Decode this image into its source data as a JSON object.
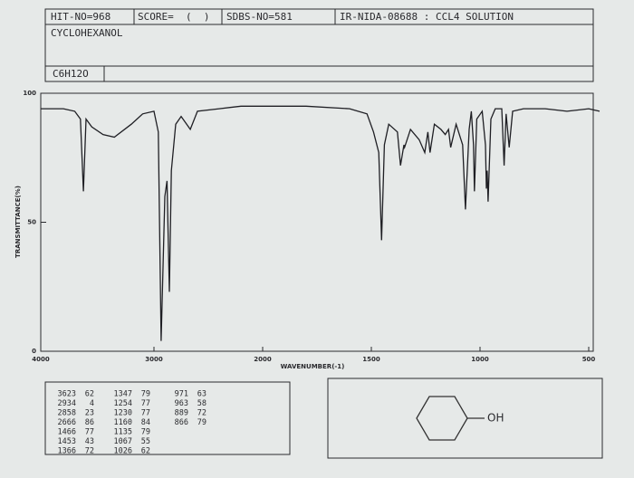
{
  "header": {
    "hit": "HIT-NO=968",
    "score": "SCORE=  (  )",
    "sdbs": "SDBS-NO=581",
    "ir": "IR-NIDA-08688 : CCL4 SOLUTION",
    "name": "CYCLOHEXANOL",
    "formula": "C6H12O"
  },
  "chart_data": {
    "type": "line",
    "xlabel": "WAVENUMBER(-1)",
    "ylabel": "TRANSMITTANCE(%)",
    "xlim": [
      4000,
      450
    ],
    "xticks": [
      4000,
      3000,
      2000,
      1500,
      1000,
      500
    ],
    "ylim": [
      0,
      100
    ],
    "yticks": [
      0,
      50,
      100
    ],
    "color": "#1f1f24",
    "x": [
      4000,
      3800,
      3700,
      3650,
      3623,
      3600,
      3550,
      3450,
      3350,
      3200,
      3100,
      3000,
      2960,
      2934,
      2900,
      2880,
      2858,
      2840,
      2800,
      2750,
      2666,
      2600,
      2400,
      2200,
      2000,
      1800,
      1600,
      1520,
      1490,
      1466,
      1453,
      1440,
      1420,
      1380,
      1366,
      1350,
      1347,
      1320,
      1280,
      1254,
      1240,
      1230,
      1210,
      1180,
      1160,
      1145,
      1135,
      1110,
      1080,
      1067,
      1050,
      1040,
      1030,
      1026,
      1015,
      990,
      975,
      971,
      967,
      963,
      950,
      930,
      900,
      889,
      880,
      866,
      850,
      800,
      700,
      600,
      500,
      450
    ],
    "values": [
      94,
      94,
      93,
      90,
      62,
      90,
      87,
      84,
      83,
      88,
      92,
      93,
      85,
      4,
      60,
      66,
      23,
      70,
      88,
      91,
      86,
      93,
      94,
      95,
      95,
      95,
      94,
      92,
      85,
      77,
      43,
      80,
      88,
      85,
      72,
      80,
      79,
      86,
      82,
      77,
      85,
      77,
      88,
      86,
      84,
      86,
      79,
      88,
      80,
      55,
      86,
      93,
      80,
      62,
      90,
      93,
      80,
      63,
      70,
      58,
      90,
      94,
      94,
      72,
      92,
      79,
      93,
      94,
      94,
      93,
      94,
      93
    ]
  },
  "peak_table": {
    "columns": [
      [
        [
          3623,
          62
        ],
        [
          2934,
          4
        ],
        [
          2858,
          23
        ],
        [
          2666,
          86
        ],
        [
          1466,
          77
        ],
        [
          1453,
          43
        ],
        [
          1366,
          72
        ]
      ],
      [
        [
          1347,
          79
        ],
        [
          1254,
          77
        ],
        [
          1230,
          77
        ],
        [
          1160,
          84
        ],
        [
          1135,
          79
        ],
        [
          1067,
          55
        ],
        [
          1026,
          62
        ]
      ],
      [
        [
          971,
          63
        ],
        [
          963,
          58
        ],
        [
          889,
          72
        ],
        [
          866,
          79
        ]
      ]
    ]
  },
  "structure": {
    "group": "OH"
  }
}
